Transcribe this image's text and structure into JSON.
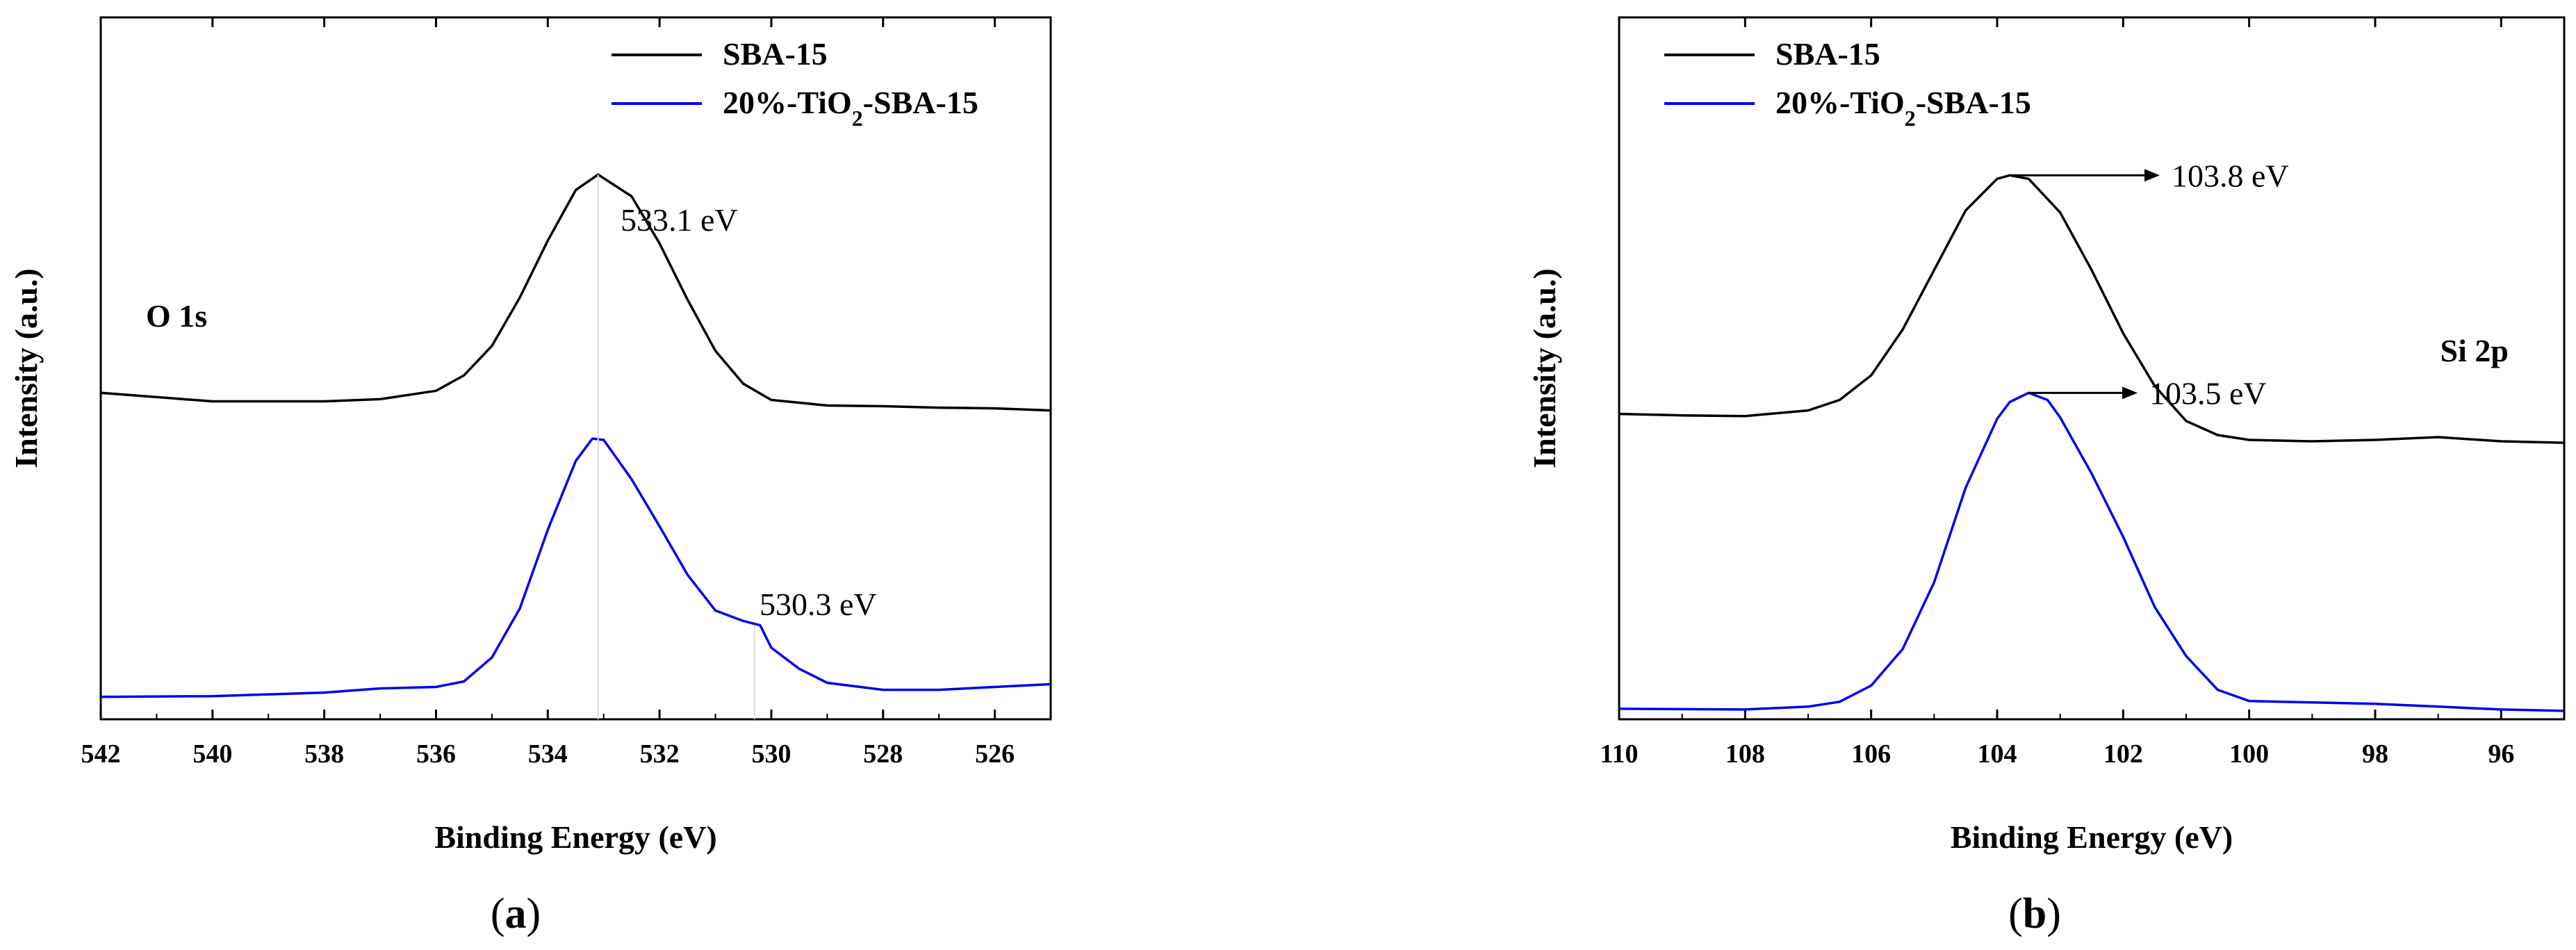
{
  "colors": {
    "sba15": "#000000",
    "tio2": "#0000ee",
    "axis": "#000000"
  },
  "chart_data": [
    {
      "type": "line",
      "panel": "a",
      "xlabel": "Binding Energy (eV)",
      "ylabel": "Intensity (a.u.)",
      "xlim": [
        542,
        525
      ],
      "x_reversed": true,
      "ylim": [
        0,
        100
      ],
      "y_ticks_labeled": false,
      "xticks": [
        542,
        540,
        538,
        536,
        534,
        532,
        530,
        528,
        526
      ],
      "grid": false,
      "legend": {
        "placement": "top-right",
        "entries": [
          "SBA-15",
          "20%-TiO₂-SBA-15"
        ]
      },
      "region_label": "O 1s",
      "annotations": [
        {
          "text": "533.1 eV",
          "x": 533.1,
          "series": "SBA-15"
        },
        {
          "text": "530.3 eV",
          "x": 530.3,
          "series": "20%-TiO₂-SBA-15"
        }
      ],
      "series": [
        {
          "name": "SBA-15",
          "x": [
            542,
            540,
            538,
            537,
            536,
            535.5,
            535,
            534.5,
            534,
            533.5,
            533.1,
            532.5,
            532,
            531.5,
            531,
            530.5,
            530,
            529,
            528,
            527,
            526,
            525
          ],
          "y": [
            46.5,
            45.3,
            45.3,
            45.6,
            46.8,
            49.0,
            53.2,
            60.1,
            68.2,
            75.4,
            77.6,
            74.5,
            67.8,
            59.8,
            52.5,
            47.8,
            45.5,
            44.7,
            44.6,
            44.4,
            44.3,
            44.0
          ]
        },
        {
          "name": "20%-TiO₂-SBA-15",
          "x": [
            542,
            540,
            538,
            537,
            536,
            535.5,
            535,
            534.5,
            534,
            533.5,
            533.2,
            533,
            532.5,
            532,
            531.5,
            531,
            530.5,
            530.2,
            530,
            529.5,
            529,
            528,
            527,
            526,
            525
          ],
          "y": [
            3.2,
            3.3,
            3.8,
            4.4,
            4.6,
            5.4,
            8.8,
            15.8,
            27.0,
            36.8,
            40.0,
            39.8,
            34.2,
            27.5,
            20.6,
            15.5,
            14.0,
            13.4,
            10.2,
            7.2,
            5.2,
            4.2,
            4.2,
            4.6,
            5.0
          ]
        }
      ]
    },
    {
      "type": "line",
      "panel": "b",
      "xlabel": "Binding Energy (eV)",
      "ylabel": "Intensity (a.u.)",
      "xlim": [
        110,
        95
      ],
      "x_reversed": true,
      "ylim": [
        0,
        100
      ],
      "y_ticks_labeled": false,
      "xticks": [
        110,
        108,
        106,
        104,
        102,
        100,
        98,
        96
      ],
      "grid": false,
      "legend": {
        "placement": "top-left",
        "entries": [
          "SBA-15",
          "20%-TiO₂-SBA-15"
        ]
      },
      "region_label": "Si 2p",
      "annotations": [
        {
          "text": "103.8 eV",
          "x": 103.8,
          "series": "SBA-15"
        },
        {
          "text": "103.5 eV",
          "x": 103.5,
          "series": "20%-TiO₂-SBA-15"
        }
      ],
      "series": [
        {
          "name": "SBA-15",
          "x": [
            110,
            109,
            108,
            107,
            106.5,
            106,
            105.5,
            105,
            104.5,
            104,
            103.8,
            103.5,
            103,
            102.5,
            102,
            101.5,
            101,
            100.5,
            100,
            99,
            98,
            97,
            96,
            95
          ],
          "y": [
            43.5,
            43.3,
            43.2,
            44.0,
            45.5,
            49.0,
            55.5,
            64.0,
            72.5,
            77.0,
            77.5,
            77.0,
            72.2,
            64.0,
            55.0,
            47.5,
            42.5,
            40.5,
            39.8,
            39.6,
            39.8,
            40.2,
            39.6,
            39.4
          ]
        },
        {
          "name": "20%-TiO₂-SBA-15",
          "x": [
            110,
            108,
            107,
            106.5,
            106,
            105.5,
            105,
            104.5,
            104,
            103.8,
            103.5,
            103.2,
            103,
            102.5,
            102,
            101.5,
            101,
            100.5,
            100,
            99,
            98,
            97,
            96,
            95
          ],
          "y": [
            1.5,
            1.4,
            1.8,
            2.5,
            4.8,
            10.0,
            19.5,
            33.0,
            42.8,
            45.2,
            46.5,
            45.5,
            43.0,
            35.0,
            26.0,
            16.0,
            9.0,
            4.2,
            2.6,
            2.4,
            2.2,
            1.8,
            1.4,
            1.2
          ]
        }
      ]
    }
  ],
  "panels": [
    {
      "letter": "a",
      "open": "(",
      "close": ")"
    },
    {
      "letter": "b",
      "open": "(",
      "close": ")"
    }
  ]
}
